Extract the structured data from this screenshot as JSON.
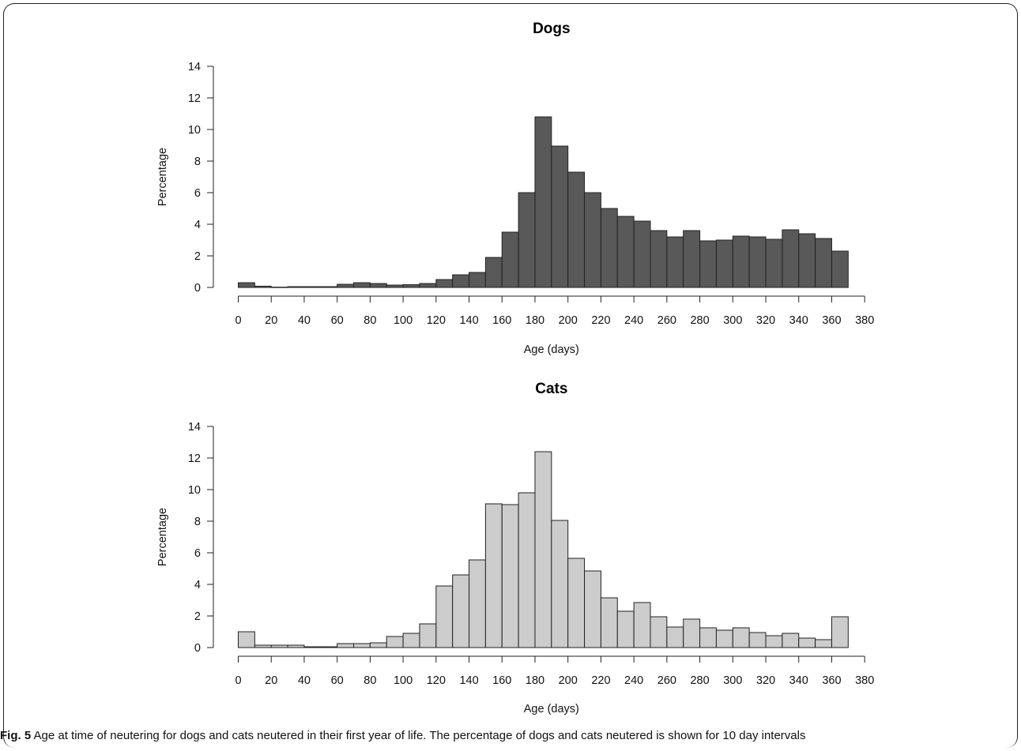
{
  "caption": {
    "label": "Fig. 5",
    "text": " Age at time of neutering for dogs and cats neutered in their first year of life. The percentage of dogs and cats neutered is shown for 10 day intervals"
  },
  "chart_data": [
    {
      "type": "bar",
      "title": "Dogs",
      "xlabel": "Age (days)",
      "ylabel": "Percentage",
      "xlim": [
        0,
        380
      ],
      "ylim": [
        0,
        14
      ],
      "x_ticks": [
        0,
        20,
        40,
        60,
        80,
        100,
        120,
        140,
        160,
        180,
        200,
        220,
        240,
        260,
        280,
        300,
        320,
        340,
        360,
        380
      ],
      "y_ticks": [
        0,
        2,
        4,
        6,
        8,
        10,
        12,
        14
      ],
      "bin_width": 10,
      "bin_starts": [
        0,
        10,
        20,
        30,
        40,
        50,
        60,
        70,
        80,
        90,
        100,
        110,
        120,
        130,
        140,
        150,
        160,
        170,
        180,
        190,
        200,
        210,
        220,
        230,
        240,
        250,
        260,
        270,
        280,
        290,
        300,
        310,
        320,
        330,
        340,
        350,
        360
      ],
      "values": [
        0.3,
        0.08,
        0.02,
        0.05,
        0.05,
        0.05,
        0.2,
        0.3,
        0.25,
        0.15,
        0.18,
        0.25,
        0.5,
        0.8,
        0.95,
        1.9,
        3.5,
        6.0,
        10.8,
        8.95,
        7.3,
        6.0,
        5.0,
        4.5,
        4.2,
        3.6,
        3.2,
        3.6,
        2.95,
        3.0,
        3.25,
        3.2,
        3.05,
        3.65,
        3.4,
        3.1,
        2.3
      ],
      "color": "#595959"
    },
    {
      "type": "bar",
      "title": "Cats",
      "xlabel": "Age (days)",
      "ylabel": "Percentage",
      "xlim": [
        0,
        380
      ],
      "ylim": [
        0,
        14
      ],
      "x_ticks": [
        0,
        20,
        40,
        60,
        80,
        100,
        120,
        140,
        160,
        180,
        200,
        220,
        240,
        260,
        280,
        300,
        320,
        340,
        360,
        380
      ],
      "y_ticks": [
        0,
        2,
        4,
        6,
        8,
        10,
        12,
        14
      ],
      "bin_width": 10,
      "bin_starts": [
        0,
        10,
        20,
        30,
        40,
        50,
        60,
        70,
        80,
        90,
        100,
        110,
        120,
        130,
        140,
        150,
        160,
        170,
        180,
        190,
        200,
        210,
        220,
        230,
        240,
        250,
        260,
        270,
        280,
        290,
        300,
        310,
        320,
        330,
        340,
        350,
        360
      ],
      "values": [
        1.0,
        0.15,
        0.15,
        0.15,
        0.05,
        0.05,
        0.25,
        0.25,
        0.3,
        0.7,
        0.9,
        1.5,
        3.9,
        4.6,
        5.55,
        9.1,
        9.05,
        9.8,
        12.4,
        8.05,
        5.65,
        4.85,
        3.15,
        2.3,
        2.85,
        1.95,
        1.3,
        1.8,
        1.25,
        1.1,
        1.25,
        0.95,
        0.75,
        0.9,
        0.6,
        0.5,
        1.95
      ],
      "color": "#cccccc"
    }
  ]
}
